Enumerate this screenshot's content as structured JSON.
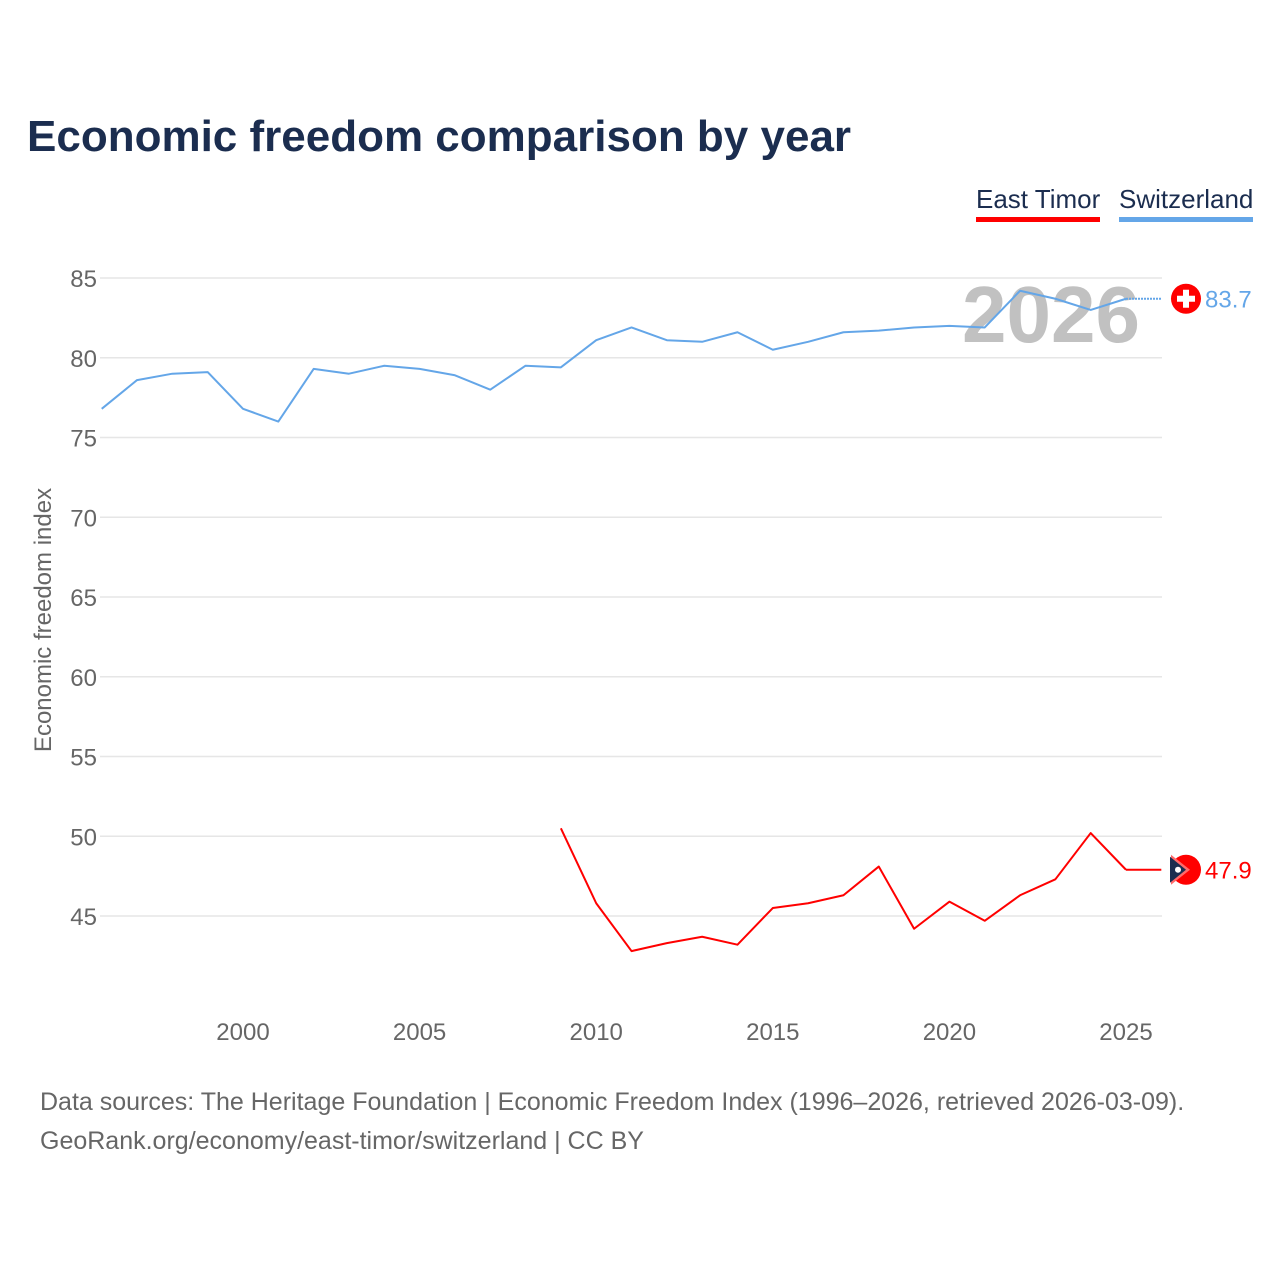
{
  "chart_data": {
    "type": "line",
    "title": "Economic freedom comparison by year",
    "xlabel": "",
    "ylabel": "Economic freedom index",
    "xlim": [
      1996,
      2026
    ],
    "ylim": [
      40,
      86
    ],
    "yticks": [
      45,
      50,
      55,
      60,
      65,
      70,
      75,
      80,
      85
    ],
    "xticks": [
      2000,
      2005,
      2010,
      2015,
      2020,
      2025
    ],
    "grid": true,
    "legend_placement": "top-right",
    "watermark_year": "2026",
    "series": [
      {
        "name": "East Timor",
        "color": "#ff0000",
        "end_label": "47.9",
        "x": [
          2009,
          2010,
          2011,
          2012,
          2013,
          2014,
          2015,
          2016,
          2017,
          2018,
          2019,
          2020,
          2021,
          2022,
          2023,
          2024,
          2025,
          2026
        ],
        "values": [
          50.5,
          45.8,
          42.8,
          43.3,
          43.7,
          43.2,
          45.5,
          45.8,
          46.3,
          48.1,
          44.2,
          45.9,
          44.7,
          46.3,
          47.3,
          50.2,
          47.9,
          47.9
        ]
      },
      {
        "name": "Switzerland",
        "color": "#64a6e8",
        "end_label": "83.7",
        "x": [
          1996,
          1997,
          1998,
          1999,
          2000,
          2001,
          2002,
          2003,
          2004,
          2005,
          2006,
          2007,
          2008,
          2009,
          2010,
          2011,
          2012,
          2013,
          2014,
          2015,
          2016,
          2017,
          2018,
          2019,
          2020,
          2021,
          2022,
          2023,
          2024,
          2025,
          2026
        ],
        "values": [
          76.8,
          78.6,
          79.0,
          79.1,
          76.8,
          76.0,
          79.3,
          79.0,
          79.5,
          79.3,
          78.9,
          78.0,
          79.5,
          79.4,
          81.1,
          81.9,
          81.1,
          81.0,
          81.6,
          80.5,
          81.0,
          81.6,
          81.7,
          81.9,
          82.0,
          81.9,
          84.2,
          83.7,
          83.0,
          83.7,
          83.7
        ]
      }
    ]
  },
  "footer": {
    "line1": "Data sources: The Heritage Foundation | Economic Freedom Index (1996–2026, retrieved 2026-03-09).",
    "line2": "GeoRank.org/economy/east-timor/switzerland | CC BY"
  }
}
